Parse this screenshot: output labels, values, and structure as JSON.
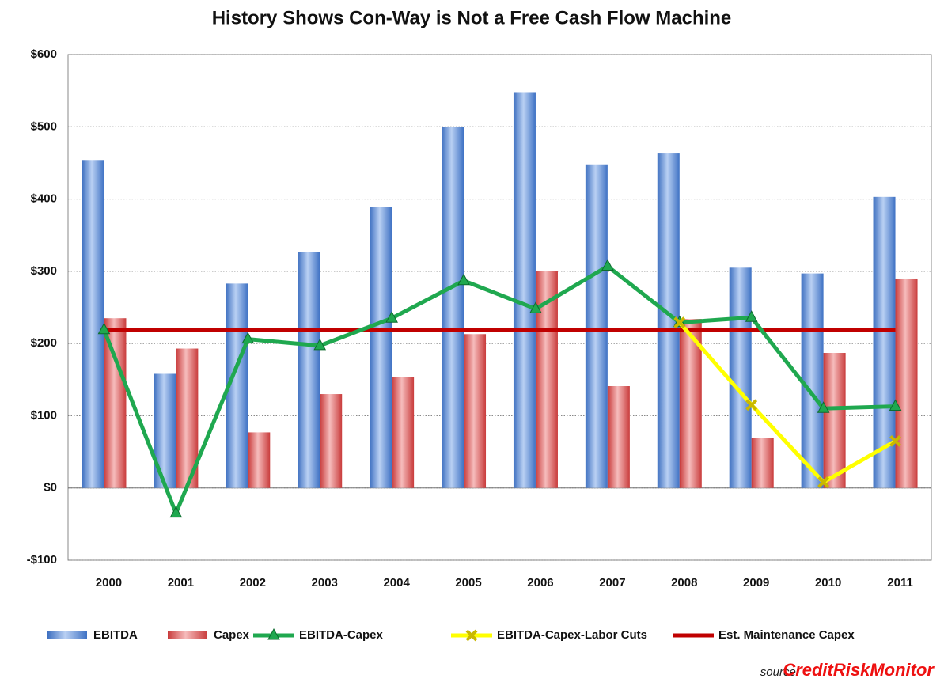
{
  "chart_data": {
    "type": "bar",
    "title": "History Shows Con-Way is Not a Free Cash Flow Machine",
    "categories": [
      "2000",
      "2001",
      "2002",
      "2003",
      "2004",
      "2005",
      "2006",
      "2007",
      "2008",
      "2009",
      "2010",
      "2011"
    ],
    "series": [
      {
        "name": "EBITDA",
        "type": "bar",
        "color": "#5b8fd9",
        "values": [
          454,
          158,
          283,
          327,
          389,
          500,
          548,
          448,
          463,
          305,
          297,
          403
        ]
      },
      {
        "name": "Capex",
        "type": "bar",
        "color": "#e06a6a",
        "values": [
          235,
          193,
          77,
          130,
          154,
          213,
          300,
          141,
          234,
          69,
          187,
          290
        ]
      },
      {
        "name": "EBITDA-Capex",
        "type": "line",
        "marker": "triangle",
        "color": "#1fa84f",
        "values": [
          219,
          -35,
          206,
          197,
          235,
          287,
          248,
          307,
          229,
          236,
          110,
          113
        ]
      },
      {
        "name": "EBITDA-Capex-Labor Cuts",
        "type": "line",
        "marker": "x",
        "color": "#ffff00",
        "values": [
          null,
          null,
          null,
          null,
          null,
          null,
          null,
          null,
          229,
          115,
          8,
          65
        ]
      },
      {
        "name": "Est. Maintenance Capex",
        "type": "line",
        "color": "#c00000",
        "values": [
          219,
          219,
          219,
          219,
          219,
          219,
          219,
          219,
          219,
          219,
          219,
          219
        ]
      }
    ],
    "ylim": [
      -100,
      600
    ],
    "yticks": [
      {
        "value": -100,
        "label": "-$100"
      },
      {
        "value": 0,
        "label": "$0"
      },
      {
        "value": 100,
        "label": "$100"
      },
      {
        "value": 200,
        "label": "$200"
      },
      {
        "value": 300,
        "label": "$300"
      },
      {
        "value": 400,
        "label": "$400"
      },
      {
        "value": 500,
        "label": "$500"
      },
      {
        "value": 600,
        "label": "$600"
      }
    ],
    "grid": true,
    "legend": "bottom",
    "source_prefix": "source:",
    "source_name": "CreditRiskMonitor"
  }
}
